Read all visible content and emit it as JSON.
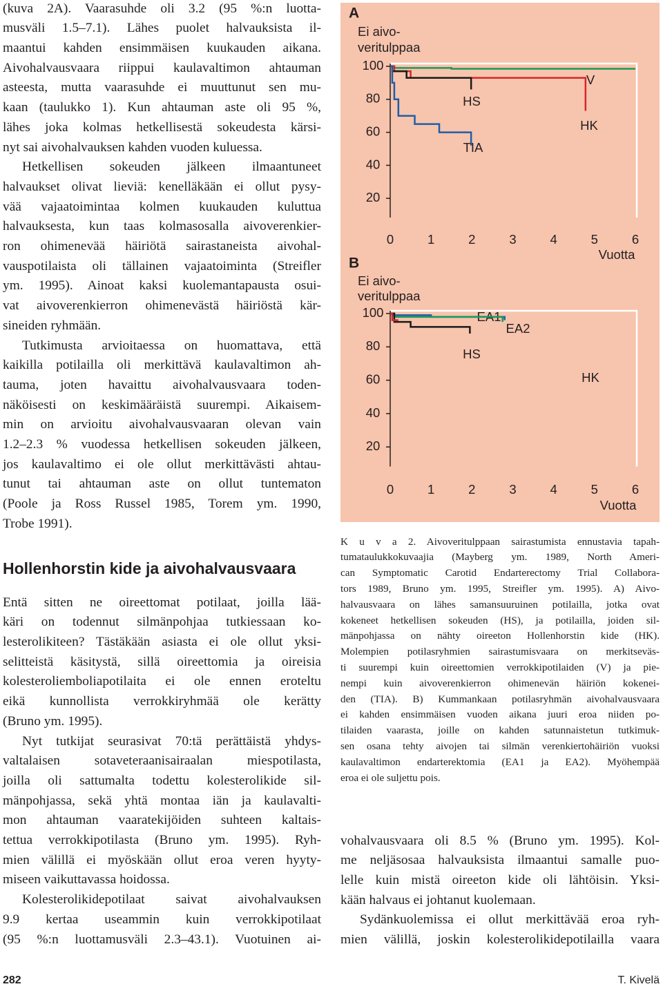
{
  "left_column": {
    "sections": [
      {
        "paragraphs": [
          {
            "lines": [
              "(kuva 2A). Vaarasuhde oli 3.2 (95 %:n luotta-",
              "musväli 1.5–7.1). Lähes puolet halvauksista il-",
              "maantui kahden ensimmäisen kuukauden aikana.",
              "Aivohalvausvaara riippui kaulavaltimon ahtauman",
              "asteesta, mutta vaarasuhde ei muuttunut sen mu-",
              "kaan (taulukko 1). Kun ahtauman aste oli 95 %,",
              "lähes joka kolmas hetkellisestä sokeudesta kärsi-",
              "nyt sai aivohalvauksen kahden vuoden kuluessa."
            ]
          },
          {
            "lines": [
              "Hetkellisen sokeuden jälkeen ilmaantuneet",
              "halvaukset olivat lieviä: kenelläkään ei ollut pysy-",
              "vää vajaatoimintaa kolmen kuukauden kuluttua",
              "halvauksesta, kun taas kolmasosalla aivoverenkier-",
              "ron ohimenevää häiriötä sairastaneista aivohal-",
              "vauspotilaista oli tällainen vajaatoiminta (Streifler",
              "ym. 1995). Ainoat kaksi kuolemantapausta osui-",
              "vat aivoverenkierron ohimenevästä häiriöstä kär-",
              "sineiden ryhmään."
            ]
          },
          {
            "lines": [
              "Tutkimusta arvioitaessa on huomattava, että",
              "kaikilla potilailla oli merkittävä kaulavaltimon ah-",
              "tauma, joten havaittu aivohalvausvaara toden-",
              "näköisesti on keskimääräistä suurempi. Aikaisem-",
              "min on arvioitu aivohalvausvaaran olevan vain",
              "1.2–2.3 % vuodessa hetkellisen sokeuden jälkeen,",
              "jos kaulavaltimo ei ole ollut merkittävästi ahtau-",
              "tunut tai ahtauman aste on ollut tuntematon",
              "(Poole ja Ross Russel 1985, Torem ym. 1990,",
              "Trobe 1991)."
            ]
          }
        ]
      },
      {
        "heading": "Hollenhorstin kide ja aivohalvausvaara",
        "paragraphs": [
          {
            "lines": [
              "Entä sitten ne oireettomat potilaat, joilla lää-",
              "käri on todennut silmänpohjaa tutkiessaan ko-",
              "lesterolikiteen? Tästäkään asiasta ei ole ollut yksi-",
              "selitteistä käsitystä, sillä oireettomia ja oireisia",
              "kolesteroliemboliapotilaita ei ole ennen eroteltu",
              "eikä kunnollista verrokkiryhmää ole kerätty",
              "(Bruno ym. 1995)."
            ]
          },
          {
            "lines": [
              "Nyt tutkijat seurasivat 70:tä perättäistä yhdys-",
              "valtalaisen sotaveteraanisairaalan miespotilasta,",
              "joilla oli sattumalta todettu kolesterolikide sil-",
              "mänpohjassa, sekä yhtä montaa iän ja kaulavalti-",
              "mon ahtauman vaaratekijöiden suhteen kaltais-",
              "tettua verrokkipotilasta (Bruno ym. 1995). Ryh-",
              "mien välillä ei myöskään ollut eroa veren hyyty-",
              "miseen vaikuttavassa hoidossa."
            ]
          },
          {
            "lines": [
              "Kolesterolikidepotilaat saivat aivohalvauksen",
              "9.9 kertaa useammin kuin verrokkipotilaat",
              "(95 %:n luottamusväli 2.3–43.1). Vuotuinen ai-"
            ]
          }
        ]
      }
    ]
  },
  "figure": {
    "panels": [
      {
        "letter": "A",
        "ylabel": [
          "Ei aivo-",
          "veritulppaa"
        ],
        "xlabel": "Vuotta",
        "xlim": [
          0,
          6
        ],
        "ylim": [
          0,
          100
        ],
        "xticks": [
          0,
          1,
          2,
          3,
          4,
          5,
          6
        ],
        "yticks": [
          20,
          40,
          60,
          80,
          100
        ],
        "series": [
          {
            "name": "V",
            "color": "#1a9a5a",
            "x": [
              0,
              0.1,
              0.1,
              1.5,
              1.5,
              6
            ],
            "y": [
              100,
              100,
              99,
              99,
              98.5,
              98.5
            ]
          },
          {
            "name": "HK",
            "color": "#d7262b",
            "x": [
              0,
              0.1,
              0.1,
              0.5,
              0.5,
              4.78,
              4.78
            ],
            "y": [
              100,
              100,
              97,
              97,
              93,
              93,
              73
            ]
          },
          {
            "name": "HS",
            "color": "#1a1a1a",
            "x": [
              0,
              0.05,
              0.05,
              0.4,
              0.4,
              1.98,
              1.98
            ],
            "y": [
              100,
              100,
              97,
              97,
              93,
              93,
              86
            ]
          },
          {
            "name": "TIA",
            "color": "#1f5ea8",
            "x": [
              0,
              0.05,
              0.05,
              0.1,
              0.1,
              0.2,
              0.2,
              0.6,
              0.6,
              1.2,
              1.2,
              1.98,
              1.98
            ],
            "y": [
              100,
              100,
              90,
              90,
              80,
              80,
              70,
              70,
              65,
              65,
              60,
              60,
              52
            ]
          }
        ]
      },
      {
        "letter": "B",
        "ylabel": [
          "Ei aivo-",
          "veritulppaa"
        ],
        "xlabel": "Vuotta",
        "xlim": [
          0,
          6
        ],
        "ylim": [
          0,
          100
        ],
        "xticks": [
          0,
          1,
          2,
          3,
          4,
          5,
          6
        ],
        "yticks": [
          20,
          40,
          60,
          80,
          100
        ],
        "series": [
          {
            "name": "EA1",
            "color": "#1f5ea8",
            "x": [
              0,
              0.05,
              0.05,
              1,
              1,
              2.8,
              2.8
            ],
            "y": [
              100,
              100,
              99,
              99,
              98,
              98,
              96
            ]
          },
          {
            "name": "EA2",
            "color": "#1a9a5a",
            "x": [
              0,
              0.1,
              0.1,
              2.75,
              2.75
            ],
            "y": [
              100,
              100,
              98,
              98,
              95
            ]
          },
          {
            "name": "HS",
            "color": "#1a1a1a",
            "x": [
              0,
              0.1,
              0.1,
              0.5,
              0.5,
              1.95,
              1.95
            ],
            "y": [
              100,
              100,
              95,
              95,
              92,
              92,
              88
            ]
          },
          {
            "name": "HK",
            "color": "#d7262b",
            "x": [
              0,
              0.05,
              0.05,
              0.2
            ],
            "y": [
              100,
              100,
              96,
              96
            ]
          }
        ]
      }
    ],
    "caption": [
      "K u v a 2. Aivoveritulppaan sairastumista ennustavia tapah-",
      "tumataulukkokuvaajia (Mayberg ym. 1989, North Ameri-",
      "can Symptomatic Carotid Endarterectomy Trial Collabora-",
      "tors 1989, Bruno ym. 1995, Streifler ym. 1995). A) Aivo-",
      "halvausvaara on lähes samansuuruinen potilailla, jotka ovat",
      "kokeneet hetkellisen sokeuden (HS), ja potilailla, joiden sil-",
      "mänpohjassa on nähty oireeton Hollenhorstin kide (HK).",
      "Molempien potilasryhmien sairastumisvaara on merkitseväs-",
      "ti suurempi kuin oireettomien verrokkipotilaiden (V) ja pie-",
      "nempi kuin aivoverenkierron ohimenevän häiriön kokenei-",
      "den (TIA). B) Kummankaan potilasryhmän aivohalvausvaara",
      "ei kahden ensimmäisen vuoden aikana juuri eroa niiden po-",
      "tilaiden vaarasta, joille on kahden satunnaistetun tutkimuk-",
      "sen osana tehty aivojen tai silmän verenkiertohäiriön vuoksi",
      "kaulavaltimon endarterektomia (EA1 ja EA2). Myöhempää",
      "eroa ei ole suljettu pois."
    ]
  },
  "right_column": {
    "paragraphs": [
      {
        "lines": [
          "vohalvausvaara oli 8.5 % (Bruno ym. 1995). Kol-",
          "me neljäsosaa halvauksista ilmaantui samalle puo-",
          "lelle kuin mistä oireeton kide oli lähtöisin. Yksi-",
          "kään halvaus ei johtanut kuolemaan."
        ]
      },
      {
        "lines": [
          "Sydänkuolemissa ei ollut merkittävää eroa ryh-",
          "mien välillä, joskin kolesterolikidepotilailla vaara"
        ]
      }
    ]
  },
  "footer": {
    "page_number": "282",
    "author": "T. Kivelä"
  }
}
